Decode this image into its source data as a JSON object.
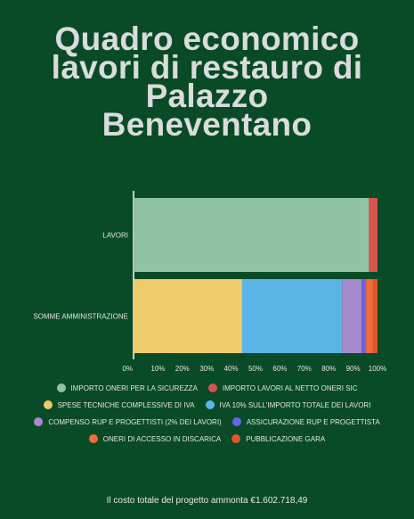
{
  "title_lines": [
    "Quadro economico",
    "lavori di restauro di",
    "Palazzo",
    "Beneventano"
  ],
  "footer": "Il costo totale del progetto ammonta €1.602.718,49",
  "chart_data": {
    "type": "bar",
    "orientation": "horizontal",
    "stacked": true,
    "normalized": true,
    "categories": [
      "LAVORI",
      "SOMME AMMINISTRAZIONE"
    ],
    "xlim": [
      0,
      100
    ],
    "x_ticks": [
      "0%",
      "10%",
      "20%",
      "30%",
      "40%",
      "50%",
      "60%",
      "70%",
      "80%",
      "90%",
      "100%"
    ],
    "legend_position": "bottom",
    "series": [
      {
        "name": "IMPORTO ONERI PER LA SICUREZZA",
        "color": "#8fc3a3",
        "values": [
          96.5,
          0
        ]
      },
      {
        "name": "IMPORTO LAVORI AL NETTO ONERI SIC",
        "color": "#d9534f",
        "values": [
          3.5,
          0
        ]
      },
      {
        "name": "SPESE TECNICHE COMPLESSIVE DI IVA",
        "color": "#efcb6b",
        "values": [
          0,
          44.5
        ]
      },
      {
        "name": "IVA 10% SULL'IMPORTO TOTALE DEI LAVORI",
        "color": "#5ab4e6",
        "values": [
          0,
          41
        ]
      },
      {
        "name": "COMPENSO RUP E PROGETTISTI (2% DEI LAVORI)",
        "color": "#a78bcf",
        "values": [
          0,
          8
        ]
      },
      {
        "name": "ASSICURAZIONE RUP E PROGETTISTA",
        "color": "#6a63e6",
        "values": [
          0,
          1.8
        ]
      },
      {
        "name": "ONERI DI ACCESSO IN DISCARICA",
        "color": "#f26b3a",
        "values": [
          0,
          2.7
        ]
      },
      {
        "name": "PUBBLICAZIONE GARA",
        "color": "#e1552a",
        "values": [
          0,
          2
        ]
      }
    ]
  }
}
